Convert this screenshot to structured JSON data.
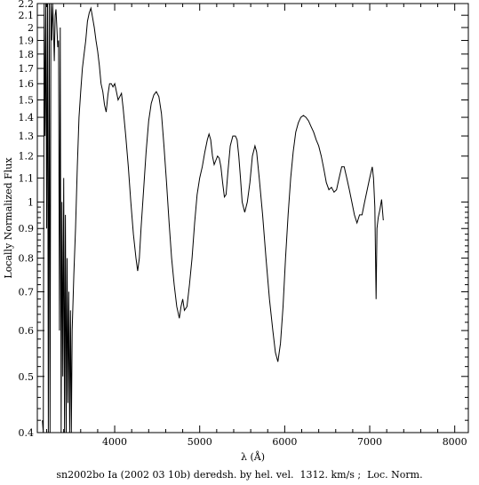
{
  "chart_data": {
    "type": "line",
    "xlabel": "λ (Å)",
    "ylabel": "Locally Normalized Flux",
    "caption": "sn2002bo Ia (2002 03 10b) deredsh. by hel. vel.  1312. km/s ;  Loc. Norm.",
    "x_scale": "linear",
    "y_scale": "log",
    "xlim": [
      3090,
      8160
    ],
    "ylim": [
      0.4,
      2.2
    ],
    "x_ticks": [
      4000,
      5000,
      6000,
      7000,
      8000
    ],
    "x_tick_labels": [
      "4000",
      "5000",
      "6000",
      "7000",
      "8000"
    ],
    "y_ticks": [
      0.4,
      0.5,
      0.6,
      0.7,
      0.8,
      0.9,
      1,
      1.1,
      1.2,
      1.3,
      1.4,
      1.5,
      1.6,
      1.7,
      1.8,
      1.9,
      2,
      2.1,
      2.2
    ],
    "y_tick_labels": [
      "0.4",
      "0.5",
      "0.6",
      "0.7",
      "0.8",
      "0.9",
      "1",
      "1.1",
      "1.2",
      "1.3",
      "1.4",
      "1.5",
      "1.6",
      "1.7",
      "1.8",
      "1.9",
      "2",
      "2.1",
      "2.2"
    ],
    "grid": false,
    "series": [
      {
        "color": "#000000",
        "points": [
          [
            3150,
            0.42
          ],
          [
            3160,
            0.4
          ],
          [
            3170,
            2.2
          ],
          [
            3180,
            1.3
          ],
          [
            3190,
            2.2
          ],
          [
            3200,
            0.9
          ],
          [
            3210,
            2.2
          ],
          [
            3220,
            0.4
          ],
          [
            3230,
            2.2
          ],
          [
            3240,
            0.4
          ],
          [
            3250,
            2.2
          ],
          [
            3260,
            1.9
          ],
          [
            3270,
            2.2
          ],
          [
            3280,
            2.0
          ],
          [
            3290,
            1.75
          ],
          [
            3300,
            2.1
          ],
          [
            3310,
            2.15
          ],
          [
            3320,
            2.0
          ],
          [
            3330,
            1.85
          ],
          [
            3340,
            1.9
          ],
          [
            3350,
            0.6
          ],
          [
            3360,
            2.0
          ],
          [
            3370,
            0.4
          ],
          [
            3380,
            1.0
          ],
          [
            3390,
            0.5
          ],
          [
            3400,
            1.1
          ],
          [
            3410,
            0.4
          ],
          [
            3420,
            0.95
          ],
          [
            3430,
            0.4
          ],
          [
            3440,
            0.8
          ],
          [
            3450,
            0.45
          ],
          [
            3460,
            0.7
          ],
          [
            3470,
            0.4
          ],
          [
            3480,
            0.65
          ],
          [
            3490,
            0.4
          ],
          [
            3500,
            0.6
          ],
          [
            3520,
            0.75
          ],
          [
            3540,
            0.9
          ],
          [
            3560,
            1.15
          ],
          [
            3580,
            1.4
          ],
          [
            3600,
            1.55
          ],
          [
            3620,
            1.7
          ],
          [
            3640,
            1.8
          ],
          [
            3660,
            1.9
          ],
          [
            3680,
            2.05
          ],
          [
            3700,
            2.12
          ],
          [
            3720,
            2.16
          ],
          [
            3740,
            2.08
          ],
          [
            3760,
            2.0
          ],
          [
            3780,
            1.9
          ],
          [
            3800,
            1.82
          ],
          [
            3820,
            1.72
          ],
          [
            3840,
            1.6
          ],
          [
            3860,
            1.55
          ],
          [
            3880,
            1.47
          ],
          [
            3900,
            1.43
          ],
          [
            3920,
            1.53
          ],
          [
            3940,
            1.6
          ],
          [
            3960,
            1.6
          ],
          [
            3980,
            1.58
          ],
          [
            4000,
            1.6
          ],
          [
            4020,
            1.55
          ],
          [
            4040,
            1.5
          ],
          [
            4060,
            1.52
          ],
          [
            4080,
            1.54
          ],
          [
            4100,
            1.45
          ],
          [
            4130,
            1.3
          ],
          [
            4160,
            1.15
          ],
          [
            4190,
            1.0
          ],
          [
            4220,
            0.88
          ],
          [
            4250,
            0.8
          ],
          [
            4270,
            0.76
          ],
          [
            4290,
            0.8
          ],
          [
            4310,
            0.9
          ],
          [
            4340,
            1.05
          ],
          [
            4370,
            1.22
          ],
          [
            4400,
            1.38
          ],
          [
            4430,
            1.48
          ],
          [
            4460,
            1.53
          ],
          [
            4490,
            1.55
          ],
          [
            4520,
            1.52
          ],
          [
            4550,
            1.42
          ],
          [
            4580,
            1.25
          ],
          [
            4610,
            1.08
          ],
          [
            4640,
            0.92
          ],
          [
            4670,
            0.8
          ],
          [
            4700,
            0.72
          ],
          [
            4730,
            0.66
          ],
          [
            4760,
            0.63
          ],
          [
            4780,
            0.66
          ],
          [
            4800,
            0.68
          ],
          [
            4820,
            0.65
          ],
          [
            4850,
            0.66
          ],
          [
            4880,
            0.72
          ],
          [
            4910,
            0.8
          ],
          [
            4940,
            0.92
          ],
          [
            4970,
            1.03
          ],
          [
            5000,
            1.1
          ],
          [
            5030,
            1.15
          ],
          [
            5060,
            1.22
          ],
          [
            5090,
            1.28
          ],
          [
            5110,
            1.31
          ],
          [
            5130,
            1.28
          ],
          [
            5150,
            1.2
          ],
          [
            5170,
            1.16
          ],
          [
            5190,
            1.18
          ],
          [
            5210,
            1.2
          ],
          [
            5230,
            1.19
          ],
          [
            5250,
            1.15
          ],
          [
            5270,
            1.08
          ],
          [
            5290,
            1.02
          ],
          [
            5310,
            1.03
          ],
          [
            5330,
            1.12
          ],
          [
            5360,
            1.25
          ],
          [
            5390,
            1.3
          ],
          [
            5420,
            1.3
          ],
          [
            5440,
            1.28
          ],
          [
            5460,
            1.2
          ],
          [
            5480,
            1.1
          ],
          [
            5500,
            1.0
          ],
          [
            5530,
            0.96
          ],
          [
            5560,
            1.0
          ],
          [
            5590,
            1.08
          ],
          [
            5620,
            1.2
          ],
          [
            5650,
            1.25
          ],
          [
            5670,
            1.22
          ],
          [
            5700,
            1.1
          ],
          [
            5740,
            0.95
          ],
          [
            5780,
            0.8
          ],
          [
            5820,
            0.68
          ],
          [
            5860,
            0.6
          ],
          [
            5890,
            0.55
          ],
          [
            5920,
            0.53
          ],
          [
            5950,
            0.57
          ],
          [
            5980,
            0.66
          ],
          [
            6010,
            0.8
          ],
          [
            6040,
            0.95
          ],
          [
            6070,
            1.1
          ],
          [
            6100,
            1.22
          ],
          [
            6130,
            1.32
          ],
          [
            6160,
            1.37
          ],
          [
            6190,
            1.4
          ],
          [
            6220,
            1.41
          ],
          [
            6250,
            1.4
          ],
          [
            6280,
            1.38
          ],
          [
            6310,
            1.35
          ],
          [
            6340,
            1.32
          ],
          [
            6370,
            1.28
          ],
          [
            6400,
            1.25
          ],
          [
            6430,
            1.2
          ],
          [
            6460,
            1.14
          ],
          [
            6490,
            1.08
          ],
          [
            6520,
            1.05
          ],
          [
            6550,
            1.06
          ],
          [
            6580,
            1.04
          ],
          [
            6610,
            1.05
          ],
          [
            6640,
            1.1
          ],
          [
            6670,
            1.15
          ],
          [
            6700,
            1.15
          ],
          [
            6730,
            1.1
          ],
          [
            6760,
            1.05
          ],
          [
            6790,
            1.0
          ],
          [
            6820,
            0.95
          ],
          [
            6850,
            0.92
          ],
          [
            6880,
            0.95
          ],
          [
            6910,
            0.95
          ],
          [
            6940,
            1.0
          ],
          [
            6970,
            1.05
          ],
          [
            7000,
            1.1
          ],
          [
            7030,
            1.15
          ],
          [
            7045,
            1.1
          ],
          [
            7060,
            0.98
          ],
          [
            7075,
            0.68
          ],
          [
            7085,
            0.9
          ],
          [
            7100,
            0.94
          ],
          [
            7120,
            0.97
          ],
          [
            7140,
            1.01
          ],
          [
            7160,
            0.93
          ]
        ]
      }
    ]
  }
}
